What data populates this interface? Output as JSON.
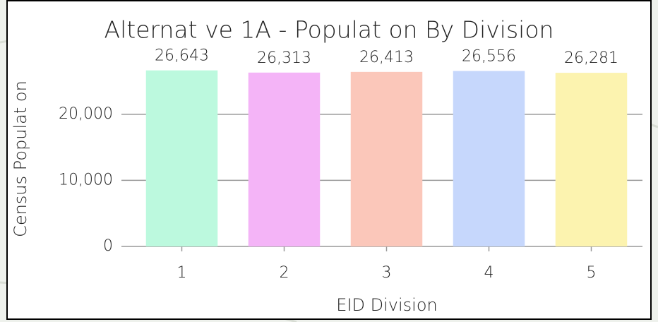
{
  "chart_data": {
    "type": "bar",
    "title": "Alternat ve 1A - Populat on By Division",
    "x_label": "EID Division",
    "y_label": "Census Populat on",
    "categories": [
      "1",
      "2",
      "3",
      "4",
      "5"
    ],
    "values": [
      26643,
      26313,
      26413,
      26556,
      26281
    ],
    "value_labels": [
      "26,643",
      "26,313",
      "26,413",
      "26,556",
      "26,281"
    ],
    "colors": [
      "#bcf9de",
      "#f4b4f7",
      "#fbc7ba",
      "#c6d7fc",
      "#fcf3af"
    ],
    "ylim": [
      0,
      28000
    ],
    "yticks": [
      0,
      {
        "value": 10000,
        "label": "10,000"
      },
      {
        "value": 20000,
        "label": "20,000"
      }
    ],
    "grid": true
  }
}
